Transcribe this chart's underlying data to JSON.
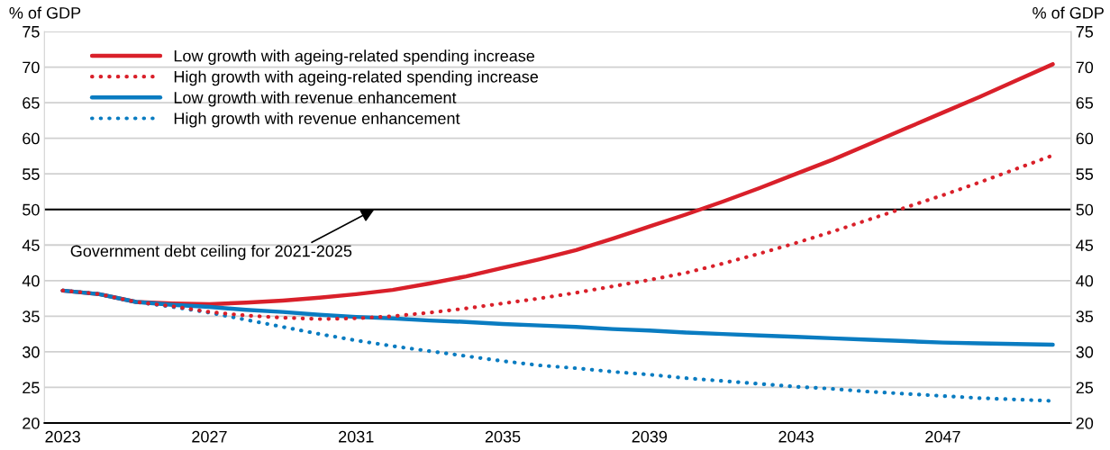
{
  "chart_data": {
    "type": "line",
    "ylabel": "% of GDP",
    "y2label": "% of GDP",
    "categories": [
      "2023",
      null,
      null,
      null,
      "2027",
      null,
      null,
      null,
      "2031",
      null,
      null,
      null,
      "2035",
      null,
      null,
      null,
      "2039",
      null,
      null,
      null,
      "2043",
      null,
      null,
      null,
      "2047",
      null,
      null,
      null
    ],
    "series": [
      {
        "name": "Low growth with ageing-related spending increase",
        "color": "#d9202a",
        "line_style": "solid",
        "values": [
          38.6,
          38.1,
          37.0,
          36.8,
          36.7,
          36.9,
          37.2,
          37.6,
          38.1,
          38.7,
          39.6,
          40.6,
          41.8,
          43.0,
          44.3,
          45.9,
          47.6,
          49.3,
          51.1,
          53.0,
          55.0,
          57.0,
          59.2,
          61.4,
          63.6,
          65.8,
          68.1,
          70.4
        ]
      },
      {
        "name": "High growth with ageing-related spending increase",
        "color": "#d9202a",
        "line_style": "dotted",
        "values": [
          38.6,
          38.1,
          37.0,
          36.4,
          35.6,
          35.1,
          34.8,
          34.6,
          34.7,
          35.0,
          35.5,
          36.1,
          36.8,
          37.5,
          38.3,
          39.2,
          40.1,
          41.1,
          42.4,
          43.8,
          45.3,
          46.9,
          48.6,
          50.3,
          52.0,
          53.8,
          55.7,
          57.6
        ]
      },
      {
        "name": "Low growth with revenue enhancement",
        "color": "#0a7cc1",
        "line_style": "solid",
        "values": [
          38.6,
          38.1,
          37.0,
          36.6,
          36.3,
          35.9,
          35.6,
          35.2,
          34.9,
          34.7,
          34.4,
          34.2,
          33.9,
          33.7,
          33.5,
          33.2,
          33.0,
          32.7,
          32.5,
          32.3,
          32.1,
          31.9,
          31.7,
          31.5,
          31.3,
          31.2,
          31.1,
          31.0
        ]
      },
      {
        "name": "High growth with revenue enhancement",
        "color": "#0a7cc1",
        "line_style": "dotted",
        "values": [
          38.6,
          38.1,
          37.0,
          36.3,
          35.5,
          34.5,
          33.5,
          32.5,
          31.6,
          30.8,
          30.1,
          29.4,
          28.7,
          28.1,
          27.7,
          27.2,
          26.8,
          26.3,
          25.9,
          25.5,
          25.1,
          24.8,
          24.4,
          24.1,
          23.8,
          23.5,
          23.3,
          23.1
        ]
      }
    ],
    "ylim": [
      20,
      75
    ],
    "yticks": [
      20,
      25,
      30,
      35,
      40,
      45,
      50,
      55,
      60,
      65,
      70,
      75
    ],
    "y2lim": [
      20,
      75
    ],
    "y2ticks": [
      20,
      25,
      30,
      35,
      40,
      45,
      50,
      55,
      60,
      65,
      70,
      75
    ],
    "ref_lines": [
      {
        "axis": "y",
        "value": 50,
        "label": "Government debt ceiling for 2021-2025",
        "color": "#000000"
      }
    ],
    "grid": "y",
    "legend": "top left",
    "marker": "none"
  }
}
